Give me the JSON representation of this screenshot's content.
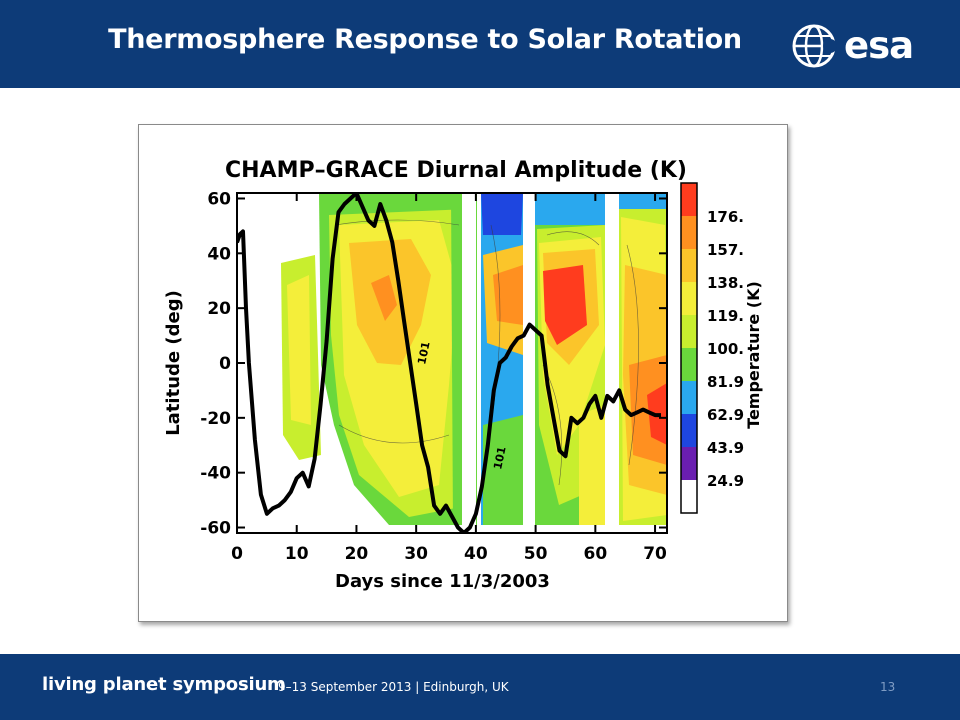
{
  "slide": {
    "title": "Thermosphere Response to Solar Rotation",
    "logo_text": "esa",
    "page_number": "13"
  },
  "footer": {
    "event": "living planet symposium",
    "details": "9–13 September 2013 | Edinburgh, UK"
  },
  "colors": {
    "header_bg": "#0d3b78",
    "footer_bg": "#0d3b78"
  },
  "chart_data": {
    "type": "heatmap",
    "title": "CHAMP–GRACE Diurnal Amplitude (K)",
    "xlabel": "Days since 11/3/2003",
    "ylabel": "Latitude (deg)",
    "xlim": [
      0,
      72
    ],
    "ylim": [
      -62,
      62
    ],
    "x_ticks": [
      0,
      10,
      20,
      30,
      40,
      50,
      60,
      70
    ],
    "y_ticks": [
      60,
      40,
      20,
      0,
      -20,
      -40,
      -60
    ],
    "colorbar": {
      "label": "Temperature (K)",
      "tick_labels": [
        "176.",
        "157.",
        "138.",
        "119.",
        "100.",
        "81.9",
        "62.9",
        "43.9",
        "24.9"
      ],
      "colors": [
        "#ff3c1e",
        "#ff9020",
        "#fbc52a",
        "#f4ee3a",
        "#c8ee2e",
        "#6ad83c",
        "#2aa8ee",
        "#1e46e0",
        "#6a1eb0",
        "#ffffff"
      ]
    },
    "contour_labels": [
      "101",
      "101"
    ],
    "series": [
      {
        "values": [
          [
            0,
            44
          ],
          [
            0.5,
            47
          ],
          [
            1,
            48
          ],
          [
            1.5,
            20
          ],
          [
            2,
            0
          ],
          [
            3,
            -28
          ],
          [
            4,
            -48
          ],
          [
            5,
            -55
          ],
          [
            6,
            -53
          ],
          [
            7,
            -52
          ],
          [
            8,
            -50
          ],
          [
            9,
            -47
          ],
          [
            10,
            -42
          ],
          [
            11,
            -40
          ],
          [
            12,
            -45
          ],
          [
            13,
            -35
          ],
          [
            14,
            -15
          ],
          [
            15,
            8
          ],
          [
            16,
            38
          ],
          [
            17,
            55
          ],
          [
            18,
            58
          ],
          [
            19,
            60
          ],
          [
            20,
            62
          ],
          [
            21,
            57
          ],
          [
            22,
            52
          ],
          [
            23,
            50
          ],
          [
            24,
            58
          ],
          [
            25,
            52
          ],
          [
            26,
            44
          ],
          [
            27,
            30
          ],
          [
            28,
            15
          ],
          [
            29,
            0
          ],
          [
            30,
            -15
          ],
          [
            31,
            -30
          ],
          [
            32,
            -38
          ],
          [
            33,
            -52
          ],
          [
            34,
            -55
          ],
          [
            35,
            -52
          ],
          [
            36,
            -56
          ],
          [
            37,
            -60
          ],
          [
            38,
            -62
          ],
          [
            39,
            -60
          ],
          [
            40,
            -55
          ],
          [
            41,
            -45
          ],
          [
            42,
            -30
          ],
          [
            43,
            -10
          ],
          [
            44,
            0
          ],
          [
            45,
            2
          ],
          [
            46,
            6
          ],
          [
            47,
            9
          ],
          [
            48,
            10
          ],
          [
            49,
            14
          ],
          [
            50,
            12
          ],
          [
            51,
            10
          ],
          [
            52,
            -8
          ],
          [
            53,
            -20
          ],
          [
            54,
            -32
          ],
          [
            55,
            -34
          ],
          [
            56,
            -20
          ],
          [
            57,
            -22
          ],
          [
            58,
            -20
          ],
          [
            59,
            -15
          ],
          [
            60,
            -12
          ],
          [
            61,
            -20
          ],
          [
            62,
            -12
          ],
          [
            63,
            -14
          ],
          [
            64,
            -10
          ],
          [
            65,
            -17
          ],
          [
            66,
            -19
          ],
          [
            67,
            -18
          ],
          [
            68,
            -17
          ],
          [
            69,
            -18
          ],
          [
            70,
            -19
          ],
          [
            71,
            -19
          ]
        ]
      }
    ]
  }
}
